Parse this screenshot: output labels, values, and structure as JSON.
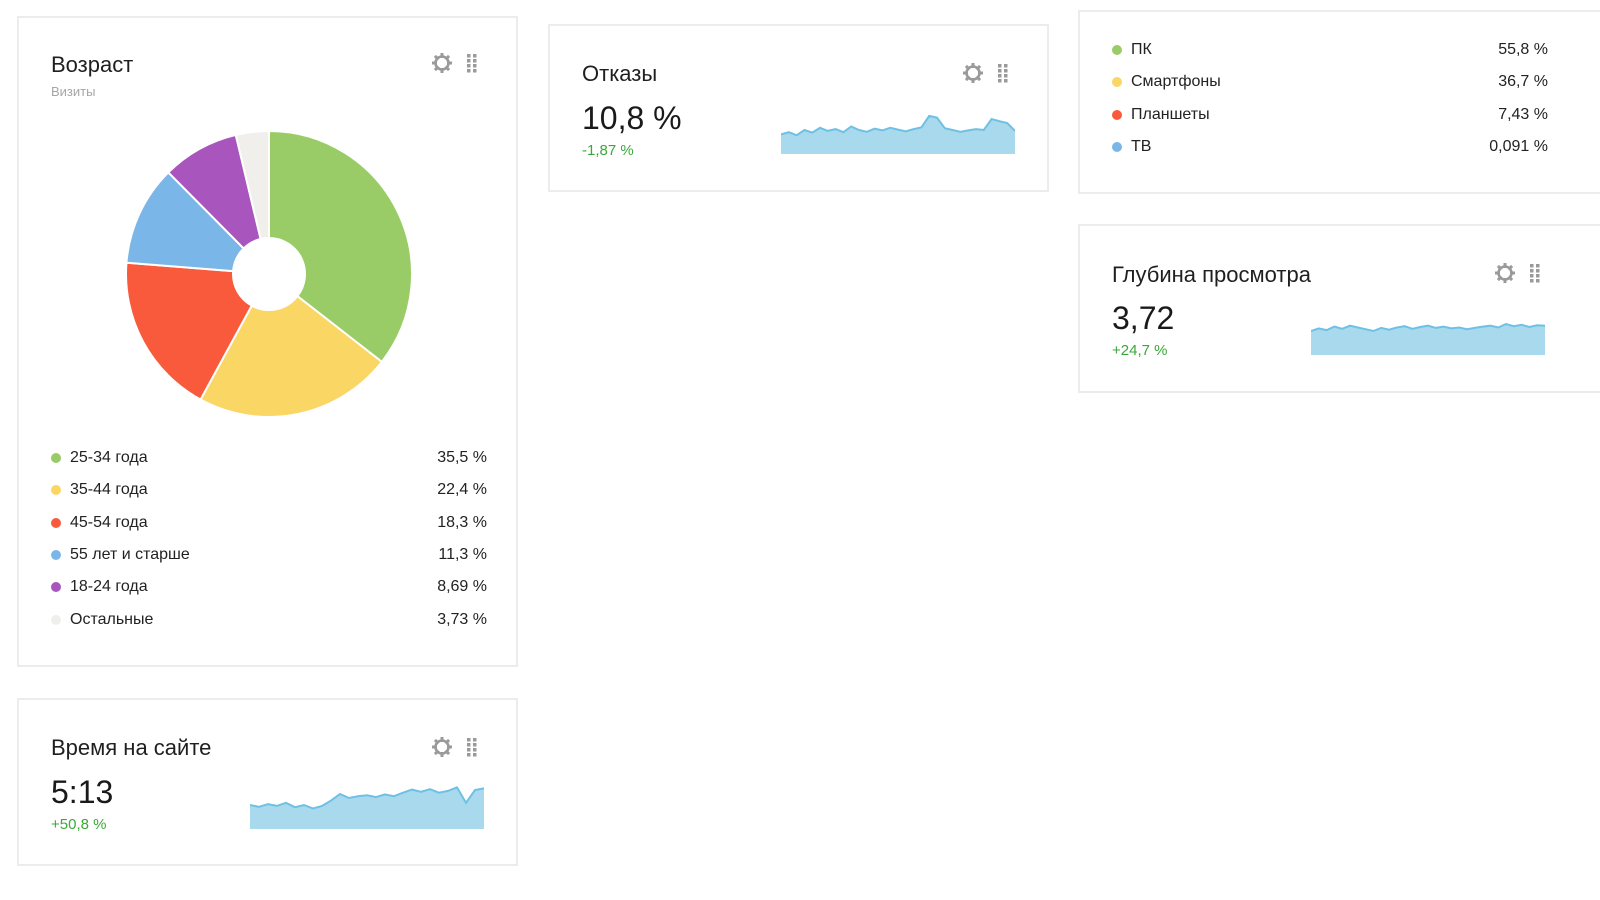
{
  "colors": {
    "green": "#99cc66",
    "yellow": "#fad664",
    "red": "#fa5a3c",
    "blue": "#7ab7e8",
    "purple": "#a855bd",
    "other": "#f1efec",
    "delta": "#3aa83a",
    "spark_fill": "#a9d9ec",
    "spark_line": "#6ec1e4",
    "icon": "#9a9a9a"
  },
  "age_widget": {
    "title": "Возраст",
    "subtitle": "Визиты",
    "legend": [
      {
        "label": "25-34 года",
        "value": "35,5 %",
        "color": "#99cc66"
      },
      {
        "label": "35-44 года",
        "value": "22,4 %",
        "color": "#fad664"
      },
      {
        "label": "45-54 года",
        "value": "18,3 %",
        "color": "#fa5a3c"
      },
      {
        "label": "55 лет и старше",
        "value": "11,3 %",
        "color": "#7ab7e8"
      },
      {
        "label": "18-24 года",
        "value": "8,69 %",
        "color": "#a855bd"
      },
      {
        "label": "Остальные",
        "value": "3,73 %",
        "color": "#f1efec"
      }
    ],
    "tools": {
      "gear": "gear-icon",
      "drag": "drag-handle-icon"
    }
  },
  "chart_data": {
    "type": "pie",
    "categories": [
      "25-34 года",
      "35-44 года",
      "45-54 года",
      "55 лет и старше",
      "18-24 года",
      "Остальные"
    ],
    "values": [
      35.5,
      22.4,
      18.3,
      11.3,
      8.69,
      3.73
    ],
    "colors": [
      "#99cc66",
      "#fad664",
      "#fa5a3c",
      "#7ab7e8",
      "#a855bd",
      "#f1efec"
    ],
    "donut": true,
    "title": "Возраст",
    "subtitle": "Визиты",
    "legend": "bottom"
  },
  "bounce_widget": {
    "title": "Отказы",
    "value": "10,8 %",
    "delta": "-1,87 %",
    "spark": [
      0.4,
      0.45,
      0.38,
      0.5,
      0.44,
      0.55,
      0.48,
      0.52,
      0.45,
      0.58,
      0.5,
      0.46,
      0.53,
      0.49,
      0.55,
      0.51,
      0.47,
      0.52,
      0.56,
      0.82,
      0.78,
      0.54,
      0.5,
      0.46,
      0.49,
      0.52,
      0.5,
      0.75,
      0.7,
      0.66,
      0.48
    ]
  },
  "devices_widget": {
    "legend": [
      {
        "label": "ПК",
        "value": "55,8 %",
        "color": "#99cc66"
      },
      {
        "label": "Смартфоны",
        "value": "36,7 %",
        "color": "#fad664"
      },
      {
        "label": "Планшеты",
        "value": "7,43 %",
        "color": "#fa5a3c"
      },
      {
        "label": "ТВ",
        "value": "0,091 %",
        "color": "#7ab7e8"
      }
    ]
  },
  "depth_widget": {
    "title": "Глубина просмотра",
    "value": "3,72",
    "delta": "+24,7 %",
    "spark": [
      0.5,
      0.56,
      0.52,
      0.6,
      0.55,
      0.62,
      0.58,
      0.54,
      0.5,
      0.57,
      0.53,
      0.58,
      0.61,
      0.55,
      0.59,
      0.62,
      0.57,
      0.6,
      0.56,
      0.58,
      0.54,
      0.57,
      0.6,
      0.62,
      0.58,
      0.66,
      0.61,
      0.64,
      0.59,
      0.63,
      0.62
    ]
  },
  "time_widget": {
    "title": "Время на сайте",
    "value": "5:13",
    "delta": "+50,8 %",
    "spark": [
      0.5,
      0.46,
      0.52,
      0.48,
      0.55,
      0.45,
      0.5,
      0.42,
      0.48,
      0.6,
      0.75,
      0.66,
      0.7,
      0.72,
      0.68,
      0.74,
      0.7,
      0.78,
      0.85,
      0.8,
      0.86,
      0.78,
      0.82,
      0.9,
      0.55,
      0.84,
      0.88
    ]
  }
}
